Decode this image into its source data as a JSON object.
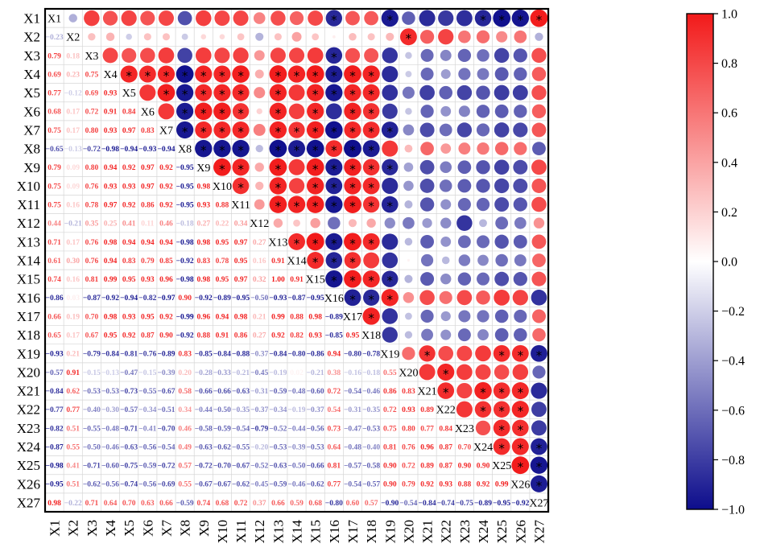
{
  "chart_data": {
    "type": "heatmap",
    "title": "",
    "variables": [
      "X1",
      "X2",
      "X3",
      "X4",
      "X5",
      "X6",
      "X7",
      "X8",
      "X9",
      "X10",
      "X11",
      "X12",
      "X13",
      "X14",
      "X15",
      "X16",
      "X17",
      "X18",
      "X19",
      "X20",
      "X21",
      "X22",
      "X23",
      "X24",
      "X25",
      "X26",
      "X27"
    ],
    "lower": [
      [],
      [
        -0.23
      ],
      [
        0.79,
        0.18
      ],
      [
        0.69,
        0.23,
        0.75
      ],
      [
        0.77,
        -0.12,
        0.69,
        0.93
      ],
      [
        0.68,
        0.17,
        0.72,
        0.91,
        0.84
      ],
      [
        0.75,
        0.17,
        0.8,
        0.93,
        0.97,
        0.83
      ],
      [
        -0.65,
        -0.13,
        -0.72,
        -0.98,
        -0.94,
        -0.93,
        -0.94
      ],
      [
        0.79,
        0.09,
        0.8,
        0.94,
        0.92,
        0.97,
        0.92,
        -0.95
      ],
      [
        0.75,
        0.09,
        0.76,
        0.93,
        0.93,
        0.97,
        0.92,
        -0.95,
        0.98
      ],
      [
        0.75,
        0.16,
        0.78,
        0.97,
        0.92,
        0.86,
        0.92,
        -0.95,
        0.93,
        0.88
      ],
      [
        0.44,
        -0.21,
        0.35,
        0.25,
        0.41,
        0.11,
        0.46,
        -0.18,
        0.27,
        0.22,
        0.34
      ],
      [
        0.71,
        0.17,
        0.76,
        0.98,
        0.94,
        0.94,
        0.94,
        -0.98,
        0.98,
        0.95,
        0.97,
        0.27
      ],
      [
        0.61,
        0.3,
        0.76,
        0.94,
        0.83,
        0.79,
        0.85,
        -0.92,
        0.83,
        0.78,
        0.95,
        0.16,
        0.91
      ],
      [
        0.74,
        0.16,
        0.81,
        0.99,
        0.95,
        0.93,
        0.96,
        -0.98,
        0.98,
        0.95,
        0.97,
        0.32,
        1.0,
        0.91
      ],
      [
        -0.86,
        0.03,
        -0.87,
        -0.92,
        -0.94,
        -0.82,
        -0.97,
        0.9,
        -0.92,
        -0.89,
        -0.95,
        -0.5,
        -0.93,
        -0.87,
        -0.95
      ],
      [
        0.66,
        0.19,
        0.7,
        0.98,
        0.93,
        0.95,
        0.92,
        -0.99,
        0.96,
        0.94,
        0.98,
        0.21,
        0.99,
        0.88,
        0.98,
        -0.89
      ],
      [
        0.65,
        0.17,
        0.67,
        0.95,
        0.92,
        0.87,
        0.9,
        -0.92,
        0.88,
        0.91,
        0.86,
        0.27,
        0.92,
        0.82,
        0.93,
        -0.85,
        0.95
      ],
      [
        -0.93,
        0.21,
        -0.79,
        -0.84,
        -0.81,
        -0.76,
        -0.89,
        0.83,
        -0.85,
        -0.84,
        -0.88,
        -0.37,
        -0.84,
        -0.8,
        -0.86,
        0.94,
        -0.8,
        -0.78
      ],
      [
        -0.57,
        0.91,
        -0.15,
        -0.13,
        -0.47,
        -0.15,
        -0.39,
        0.2,
        -0.28,
        -0.33,
        -0.21,
        -0.45,
        -0.19,
        0.02,
        -0.21,
        0.38,
        -0.16,
        -0.18,
        0.55
      ],
      [
        -0.84,
        0.62,
        -0.53,
        -0.53,
        -0.73,
        -0.55,
        -0.67,
        0.58,
        -0.66,
        -0.66,
        -0.63,
        -0.31,
        -0.59,
        -0.48,
        -0.6,
        0.72,
        -0.54,
        -0.46,
        0.86,
        0.83
      ],
      [
        -0.77,
        0.77,
        -0.4,
        -0.3,
        -0.57,
        -0.34,
        -0.51,
        0.34,
        -0.44,
        -0.5,
        -0.35,
        -0.37,
        -0.34,
        -0.19,
        -0.37,
        0.54,
        -0.31,
        -0.35,
        0.72,
        0.93,
        0.89
      ],
      [
        -0.82,
        0.51,
        -0.55,
        -0.48,
        -0.71,
        -0.41,
        -0.7,
        0.46,
        -0.58,
        -0.59,
        -0.54,
        -0.79,
        -0.52,
        -0.44,
        -0.56,
        0.73,
        -0.47,
        -0.53,
        0.75,
        0.8,
        0.77,
        0.84
      ],
      [
        -0.87,
        0.55,
        -0.5,
        -0.46,
        -0.63,
        -0.56,
        -0.54,
        0.49,
        -0.63,
        -0.62,
        -0.55,
        -0.2,
        -0.53,
        -0.39,
        -0.53,
        0.64,
        -0.48,
        -0.4,
        0.81,
        0.76,
        0.96,
        0.87,
        0.7
      ],
      [
        -0.98,
        0.41,
        -0.71,
        -0.6,
        -0.75,
        -0.59,
        -0.72,
        0.57,
        -0.72,
        -0.7,
        -0.67,
        -0.52,
        -0.63,
        -0.5,
        -0.66,
        0.81,
        -0.57,
        -0.58,
        0.9,
        0.72,
        0.89,
        0.87,
        0.9,
        0.9
      ],
      [
        -0.95,
        0.51,
        -0.62,
        -0.56,
        -0.74,
        -0.56,
        -0.69,
        0.55,
        -0.67,
        -0.67,
        -0.62,
        -0.45,
        -0.59,
        -0.46,
        -0.62,
        0.77,
        -0.54,
        -0.57,
        0.9,
        0.79,
        0.92,
        0.93,
        0.88,
        0.92,
        0.99
      ],
      [
        0.98,
        -0.22,
        0.71,
        0.64,
        0.7,
        0.63,
        0.66,
        -0.59,
        0.74,
        0.68,
        0.72,
        0.37,
        0.66,
        0.59,
        0.68,
        -0.8,
        0.6,
        0.57,
        -0.9,
        -0.54,
        -0.84,
        -0.74,
        -0.75,
        -0.89,
        -0.95,
        -0.92
      ]
    ],
    "significant": "r_abs>0.84",
    "colorbar": {
      "range": [
        -1.0,
        1.0
      ],
      "ticks": [
        "−1.0",
        "−0.8",
        "−0.6",
        "−0.4",
        "−0.2",
        "0.0",
        "0.2",
        "0.4",
        "0.6",
        "0.8",
        "1.0"
      ],
      "low_color": "#0d0d8c",
      "mid_color": "#ffffff",
      "high_color": "#f21a1a"
    },
    "star_symbol": "*"
  }
}
